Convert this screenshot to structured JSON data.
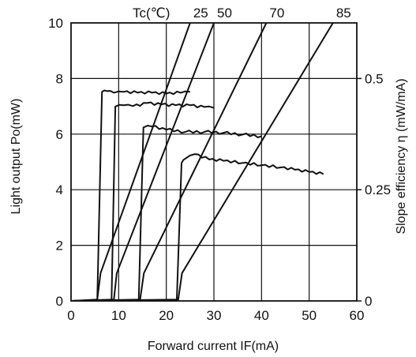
{
  "chart_data": {
    "type": "line",
    "xlabel": "Forward current IF(mA)",
    "ylabel_left": "Light output Po(mW)",
    "ylabel_right": "Slope efficiency η (mW/mA)",
    "legend_title": "Tc(℃)",
    "xlim": [
      0,
      60
    ],
    "ylim_left": [
      0,
      10
    ],
    "ylim_right": [
      0,
      0.625
    ],
    "x_ticks": [
      "0",
      "10",
      "20",
      "30",
      "40",
      "50",
      "60"
    ],
    "y_ticks_left": [
      "0",
      "2",
      "4",
      "6",
      "8",
      "10"
    ],
    "y_ticks_right": [
      "0",
      "0.25",
      "0.5"
    ],
    "y_ticks_right_values": [
      0,
      0.25,
      0.5
    ],
    "grid": true,
    "light_output_series": [
      {
        "name": "25",
        "points": [
          [
            0,
            0
          ],
          [
            5.5,
            0.05
          ],
          [
            6.2,
            1.0
          ],
          [
            25,
            10
          ]
        ]
      },
      {
        "name": "50",
        "points": [
          [
            0,
            0
          ],
          [
            9,
            0.05
          ],
          [
            9.6,
            1.0
          ],
          [
            30,
            10
          ]
        ]
      },
      {
        "name": "70",
        "points": [
          [
            0,
            0
          ],
          [
            14.5,
            0.05
          ],
          [
            15.3,
            1.0
          ],
          [
            41,
            10
          ]
        ]
      },
      {
        "name": "85",
        "points": [
          [
            0,
            0
          ],
          [
            22.5,
            0.05
          ],
          [
            23.3,
            1.0
          ],
          [
            55,
            10
          ]
        ]
      }
    ],
    "slope_efficiency_series": [
      {
        "name": "25",
        "points": [
          [
            0,
            0
          ],
          [
            5.5,
            0
          ],
          [
            6.5,
            0.47
          ],
          [
            7.5,
            0.472
          ],
          [
            9,
            0.468
          ],
          [
            11,
            0.47
          ],
          [
            14,
            0.468
          ],
          [
            17,
            0.468
          ],
          [
            20,
            0.466
          ],
          [
            23,
            0.468
          ],
          [
            25,
            0.47
          ]
        ]
      },
      {
        "name": "50",
        "points": [
          [
            0,
            0
          ],
          [
            8.5,
            0
          ],
          [
            9.3,
            0.437
          ],
          [
            11,
            0.44
          ],
          [
            13,
            0.438
          ],
          [
            16,
            0.445
          ],
          [
            19,
            0.442
          ],
          [
            22,
            0.44
          ],
          [
            25,
            0.44
          ],
          [
            28,
            0.436
          ],
          [
            30,
            0.434
          ]
        ]
      },
      {
        "name": "70",
        "points": [
          [
            0,
            0
          ],
          [
            14.2,
            0
          ],
          [
            15.2,
            0.39
          ],
          [
            17,
            0.392
          ],
          [
            20,
            0.385
          ],
          [
            24,
            0.38
          ],
          [
            28,
            0.38
          ],
          [
            32,
            0.378
          ],
          [
            36,
            0.374
          ],
          [
            40,
            0.37
          ]
        ]
      },
      {
        "name": "85",
        "points": [
          [
            0,
            0
          ],
          [
            22.2,
            0
          ],
          [
            23.2,
            0.31
          ],
          [
            24,
            0.32
          ],
          [
            26,
            0.33
          ],
          [
            29,
            0.318
          ],
          [
            32,
            0.315
          ],
          [
            36,
            0.31
          ],
          [
            40,
            0.305
          ],
          [
            44,
            0.3
          ],
          [
            47,
            0.295
          ],
          [
            50,
            0.29
          ],
          [
            53,
            0.285
          ]
        ]
      }
    ]
  }
}
